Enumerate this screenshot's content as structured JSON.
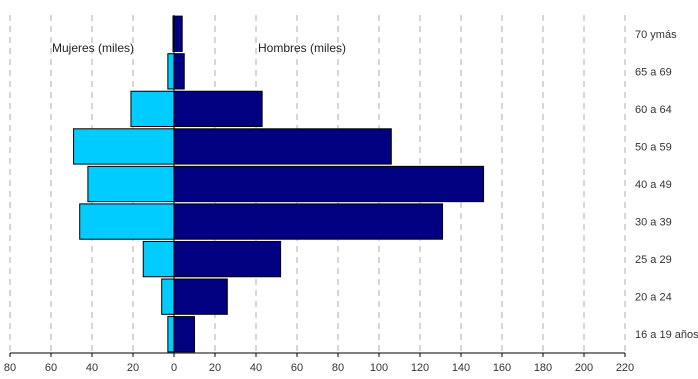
{
  "chart_data": {
    "type": "bar",
    "orientation": "horizontal-population-pyramid",
    "categories": [
      "16 a 19 años",
      "20 a 24",
      "25 a 29",
      "30 a 39",
      "40 a 49",
      "50 a 59",
      "60 a 64",
      "65 a 69",
      "70 ymás"
    ],
    "series": [
      {
        "name": "Mujeres (miles)",
        "side": "left",
        "color": "#00ccff",
        "values": [
          3,
          6,
          15,
          46,
          42,
          49,
          21,
          3,
          0.5
        ]
      },
      {
        "name": "Hombres (miles)",
        "side": "right",
        "color": "#000080",
        "values": [
          10,
          26,
          52,
          131,
          151,
          106,
          43,
          5,
          4
        ]
      }
    ],
    "x_ticks": [
      "80",
      "60",
      "40",
      "20",
      "0",
      "20",
      "40",
      "60",
      "80",
      "100",
      "120",
      "140",
      "160",
      "180",
      "200",
      "220"
    ],
    "xlim": [
      -80,
      220
    ],
    "grid": true,
    "legend": "top-inside"
  }
}
